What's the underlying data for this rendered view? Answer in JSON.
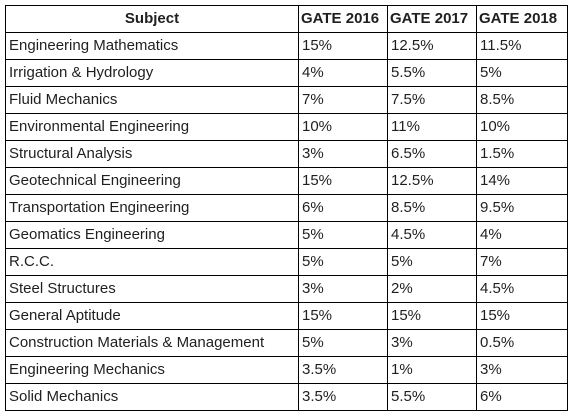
{
  "table": {
    "headers": [
      "Subject",
      "GATE 2016",
      "GATE 2017",
      "GATE 2018"
    ],
    "rows": [
      [
        "Engineering Mathematics",
        "15%",
        "12.5%",
        "11.5%"
      ],
      [
        "Irrigation & Hydrology",
        "4%",
        "5.5%",
        "5%"
      ],
      [
        "Fluid Mechanics",
        "7%",
        "7.5%",
        "8.5%"
      ],
      [
        "Environmental Engineering",
        "10%",
        "11%",
        "10%"
      ],
      [
        "Structural Analysis",
        "3%",
        "6.5%",
        "1.5%"
      ],
      [
        "Geotechnical Engineering",
        "15%",
        "12.5%",
        "14%"
      ],
      [
        "Transportation Engineering",
        "6%",
        "8.5%",
        "9.5%"
      ],
      [
        "Geomatics Engineering",
        "5%",
        "4.5%",
        "4%"
      ],
      [
        "R.C.C.",
        "5%",
        "5%",
        "7%"
      ],
      [
        "Steel Structures",
        "3%",
        "2%",
        "4.5%"
      ],
      [
        "General Aptitude",
        "15%",
        "15%",
        "15%"
      ],
      [
        "Construction Materials & Management",
        "5%",
        "3%",
        "0.5%"
      ],
      [
        "Engineering Mechanics",
        "3.5%",
        "1%",
        "3%"
      ],
      [
        "Solid Mechanics",
        "3.5%",
        "5.5%",
        "6%"
      ]
    ]
  }
}
